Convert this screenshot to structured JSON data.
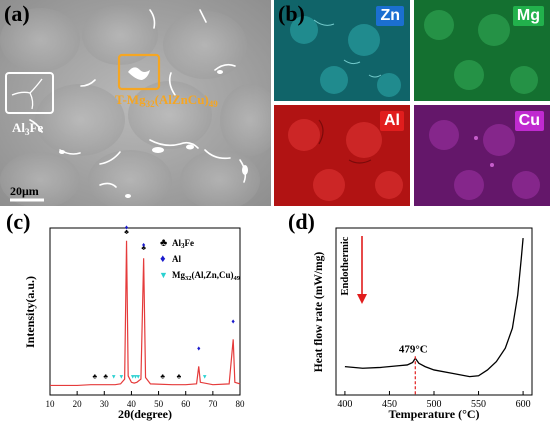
{
  "panel_a": {
    "letter": "(a)",
    "phase_label_main": "T-Mg",
    "phase_sub1": "32",
    "phase_paren": "(AlZnCu)",
    "phase_sub2": "49",
    "al3fe_main": "Al",
    "al3fe_sub": "3",
    "al3fe_tail": "Fe",
    "scalebar": "20μm",
    "accent_color": "#f5a623"
  },
  "panel_b": {
    "letter": "(b)",
    "maps": [
      {
        "label": "Zn",
        "color": "#1ea3a8",
        "label_bg": "#1b6fd1"
      },
      {
        "label": "Mg",
        "color": "#1fa64a",
        "label_bg": "#22b14c"
      },
      {
        "label": "Al",
        "color": "#d41f1f",
        "label_bg": "#e11d1d"
      },
      {
        "label": "Cu",
        "color": "#9a2aa0",
        "label_bg": "#c02ad0"
      }
    ]
  },
  "panel_c": {
    "letter": "(c)",
    "legend": [
      {
        "marker": "♣",
        "main": "Al",
        "sub": "3",
        "tail": "Fe",
        "color": "#000000"
      },
      {
        "marker": "♦",
        "main": "Al",
        "sub": "",
        "tail": "",
        "color": "#1a1acc"
      },
      {
        "marker": "▼",
        "main": "Mg",
        "sub": "32",
        "tail": "(Al,Zn,Cu)",
        "sub2": "49",
        "color": "#2ad1d1"
      }
    ]
  },
  "panel_d": {
    "letter": "(d)",
    "annotation": "479°C",
    "endothermic": "Endothermic"
  },
  "chart_data": [
    {
      "type": "line",
      "xlabel": "2θ(degree)",
      "ylabel": "Intensity(a.u.)",
      "xlim": [
        10,
        80
      ],
      "xticks": [
        "10",
        "20",
        "30",
        "40",
        "50",
        "60",
        "70",
        "80"
      ],
      "grid": false,
      "series": [
        {
          "color": "#e53b3b",
          "points": [
            [
              10,
              0.06
            ],
            [
              20,
              0.06
            ],
            [
              25,
              0.065
            ],
            [
              30,
              0.065
            ],
            [
              34,
              0.065
            ],
            [
              36,
              0.07
            ],
            [
              37.5,
              0.1
            ],
            [
              38.2,
              0.97
            ],
            [
              38.8,
              0.12
            ],
            [
              40,
              0.08
            ],
            [
              41,
              0.075
            ],
            [
              42,
              0.08
            ],
            [
              43.5,
              0.1
            ],
            [
              44.5,
              0.86
            ],
            [
              45.2,
              0.11
            ],
            [
              47,
              0.07
            ],
            [
              55,
              0.065
            ],
            [
              60,
              0.065
            ],
            [
              64,
              0.07
            ],
            [
              64.8,
              0.18
            ],
            [
              65.4,
              0.08
            ],
            [
              70,
              0.065
            ],
            [
              76,
              0.07
            ],
            [
              77.5,
              0.35
            ],
            [
              78.1,
              0.08
            ],
            [
              80,
              0.07
            ]
          ]
        }
      ],
      "markers": [
        {
          "phase": "Al3Fe",
          "x": 26.5,
          "y": 0.09
        },
        {
          "phase": "Al3Fe",
          "x": 30.5,
          "y": 0.09
        },
        {
          "phase": "Al3Fe",
          "x": 38.2,
          "y": 1.0
        },
        {
          "phase": "Al3Fe",
          "x": 44.5,
          "y": 0.9
        },
        {
          "phase": "Al3Fe",
          "x": 51.5,
          "y": 0.09
        },
        {
          "phase": "Al3Fe",
          "x": 57.5,
          "y": 0.09
        },
        {
          "phase": "Al",
          "x": 38.2,
          "y": 0.99
        },
        {
          "phase": "Al",
          "x": 44.5,
          "y": 0.88
        },
        {
          "phase": "Al",
          "x": 64.8,
          "y": 0.23
        },
        {
          "phase": "Al",
          "x": 77.5,
          "y": 0.4
        },
        {
          "phase": "Mg32",
          "x": 33.5,
          "y": 0.09
        },
        {
          "phase": "Mg32",
          "x": 36.3,
          "y": 0.09
        },
        {
          "phase": "Mg32",
          "x": 40.5,
          "y": 0.09
        },
        {
          "phase": "Mg32",
          "x": 41.5,
          "y": 0.09
        },
        {
          "phase": "Mg32",
          "x": 42.5,
          "y": 0.09
        },
        {
          "phase": "Mg32",
          "x": 67.0,
          "y": 0.09
        }
      ]
    },
    {
      "type": "line",
      "xlabel": "Temperature (°C)",
      "ylabel": "Heat flow rate (mW/mg)",
      "xlim": [
        390,
        610
      ],
      "xticks": [
        "400",
        "450",
        "500",
        "550",
        "600"
      ],
      "grid": false,
      "series": [
        {
          "color": "#000000",
          "points": [
            [
              400,
              0.17
            ],
            [
              420,
              0.16
            ],
            [
              440,
              0.165
            ],
            [
              460,
              0.175
            ],
            [
              470,
              0.18
            ],
            [
              476,
              0.195
            ],
            [
              479,
              0.22
            ],
            [
              483,
              0.19
            ],
            [
              490,
              0.17
            ],
            [
              500,
              0.15
            ],
            [
              520,
              0.13
            ],
            [
              540,
              0.11
            ],
            [
              550,
              0.115
            ],
            [
              560,
              0.15
            ],
            [
              570,
              0.2
            ],
            [
              580,
              0.28
            ],
            [
              588,
              0.4
            ],
            [
              594,
              0.6
            ],
            [
              598,
              0.82
            ],
            [
              600,
              0.94
            ]
          ]
        }
      ],
      "annotation_x": 479
    }
  ]
}
